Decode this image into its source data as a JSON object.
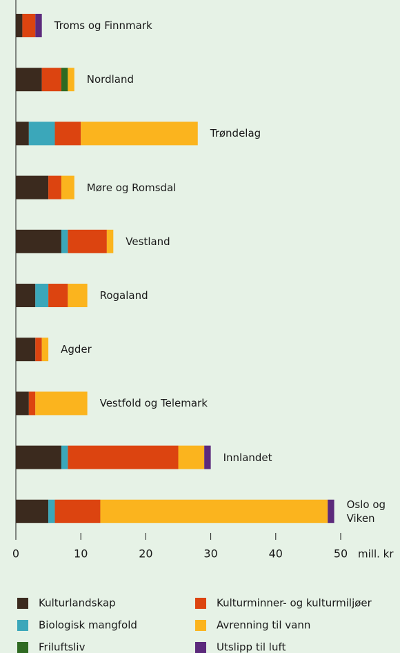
{
  "chart_data": {
    "type": "stacked-bar-horizontal",
    "categories": [
      "Troms og Finnmark",
      "Nordland",
      "Trøndelag",
      "Møre og Romsdal",
      "Vestland",
      "Rogaland",
      "Agder",
      "Vestfold og Telemark",
      "Innlandet",
      "Oslo og Viken"
    ],
    "series": [
      {
        "name": "Kulturlandskap",
        "color": "#3b2a1e",
        "values": [
          1,
          4,
          2,
          5,
          7,
          3,
          3,
          2,
          7,
          5
        ]
      },
      {
        "name": "Biologisk mangfold",
        "color": "#3ba7ba",
        "values": [
          0,
          0,
          4,
          0,
          1,
          2,
          0,
          0,
          1,
          1
        ]
      },
      {
        "name": "Kulturminner- og kulturmiljøer",
        "color": "#dc4410",
        "values": [
          2,
          3,
          4,
          2,
          6,
          3,
          1,
          1,
          17,
          7
        ]
      },
      {
        "name": "Friluftsliv",
        "color": "#2f6a22",
        "values": [
          0,
          1,
          0,
          0,
          0,
          0,
          0,
          0,
          0,
          0
        ]
      },
      {
        "name": "Avrenning til vann",
        "color": "#fbb41e",
        "values": [
          0,
          1,
          18,
          2,
          1,
          3,
          1,
          8,
          4,
          35
        ]
      },
      {
        "name": "Utslipp til luft",
        "color": "#5c2a7c",
        "values": [
          1,
          0,
          0,
          0,
          0,
          0,
          0,
          0,
          1,
          1
        ]
      }
    ],
    "x_unit": "mill. kr",
    "xlim": [
      0,
      50
    ],
    "xticks": [
      0,
      10,
      20,
      30,
      40,
      50
    ]
  }
}
